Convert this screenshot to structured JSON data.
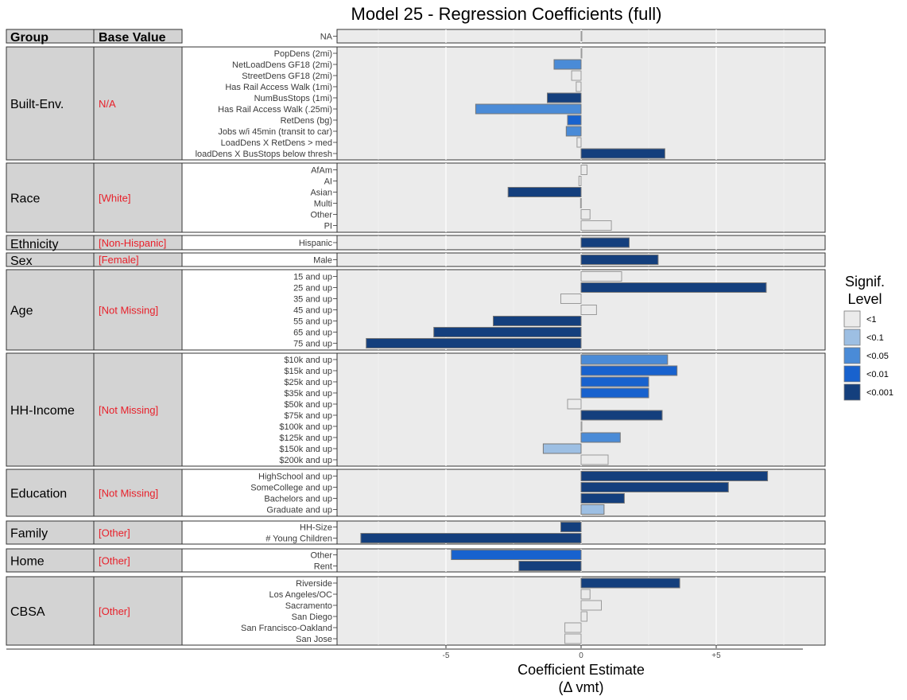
{
  "chart_data": {
    "type": "bar",
    "orientation": "horizontal",
    "title": "Model 25 - Regression Coefficients (full)",
    "xlabel": "Coefficient Estimate",
    "xlabel_line2": "(Δ vmt)",
    "xlim": [
      -9,
      9
    ],
    "xticks": [
      {
        "value": -5,
        "label": "-5"
      },
      {
        "value": 0,
        "label": "0"
      },
      {
        "value": 5,
        "label": "+5"
      }
    ],
    "grid": true,
    "table_headers": {
      "group": "Group",
      "base": "Base Value"
    },
    "legend": {
      "title_line1": "Signif.",
      "title_line2": "Level",
      "position": "right",
      "entries": [
        {
          "label": "<1",
          "color": "#ebebeb"
        },
        {
          "label": "<0.1",
          "color": "#9dbfe3"
        },
        {
          "label": "<0.05",
          "color": "#4a8bd7"
        },
        {
          "label": "<0.01",
          "color": "#1862ce"
        },
        {
          "label": "<0.001",
          "color": "#143f7d"
        }
      ]
    },
    "groups": [
      {
        "group": "",
        "base": "",
        "rows": [
          {
            "label": "NA",
            "value": 0,
            "sig": "<1"
          }
        ]
      },
      {
        "group": "Built-Env.",
        "base": "N/A",
        "rows": [
          {
            "label": "PopDens (2mi)",
            "value": 0.0,
            "sig": "<1"
          },
          {
            "label": "NetLoadDens GF18 (2mi)",
            "value": -1.0,
            "sig": "<0.05"
          },
          {
            "label": "StreetDens GF18 (2mi)",
            "value": -0.35,
            "sig": "<1"
          },
          {
            "label": "Has Rail Access Walk (1mi)",
            "value": -0.18,
            "sig": "<1"
          },
          {
            "label": "NumBusStops (1mi)",
            "value": -1.25,
            "sig": "<0.001"
          },
          {
            "label": "Has Rail Access Walk (.25mi)",
            "value": -3.9,
            "sig": "<0.05"
          },
          {
            "label": "RetDens (bg)",
            "value": -0.5,
            "sig": "<0.01"
          },
          {
            "label": "Jobs w/i 45min (transit to car)",
            "value": -0.55,
            "sig": "<0.05"
          },
          {
            "label": "LoadDens X RetDens > med",
            "value": -0.15,
            "sig": "<1"
          },
          {
            "label": "loadDens X BusStops below thresh",
            "value": 3.1,
            "sig": "<0.001"
          }
        ]
      },
      {
        "group": "Race",
        "base": "[White]",
        "rows": [
          {
            "label": "AfAm",
            "value": 0.22,
            "sig": "<1"
          },
          {
            "label": "AI",
            "value": -0.08,
            "sig": "<1"
          },
          {
            "label": "Asian",
            "value": -2.7,
            "sig": "<0.001"
          },
          {
            "label": "Multi",
            "value": -0.02,
            "sig": "<1"
          },
          {
            "label": "Other",
            "value": 0.33,
            "sig": "<1"
          },
          {
            "label": "PI",
            "value": 1.12,
            "sig": "<1"
          }
        ]
      },
      {
        "group": "Ethnicity",
        "base": "[Non-Hispanic]",
        "rows": [
          {
            "label": "Hispanic",
            "value": 1.78,
            "sig": "<0.001"
          }
        ]
      },
      {
        "group": "Sex",
        "base": "[Female]",
        "rows": [
          {
            "label": "Male",
            "value": 2.85,
            "sig": "<0.001"
          }
        ]
      },
      {
        "group": "Age",
        "base": "[Not Missing]",
        "rows": [
          {
            "label": "15 and up",
            "value": 1.5,
            "sig": "<1"
          },
          {
            "label": "25 and up",
            "value": 6.85,
            "sig": "<0.001"
          },
          {
            "label": "35 and up",
            "value": -0.75,
            "sig": "<1"
          },
          {
            "label": "45 and up",
            "value": 0.57,
            "sig": "<1"
          },
          {
            "label": "55 and up",
            "value": -3.25,
            "sig": "<0.001"
          },
          {
            "label": "65 and up",
            "value": -5.45,
            "sig": "<0.001"
          },
          {
            "label": "75 and up",
            "value": -7.95,
            "sig": "<0.001"
          }
        ]
      },
      {
        "group": "HH-Income",
        "base": "[Not Missing]",
        "rows": [
          {
            "label": "$10k and up",
            "value": 3.2,
            "sig": "<0.05"
          },
          {
            "label": "$15k and up",
            "value": 3.55,
            "sig": "<0.01"
          },
          {
            "label": "$25k and up",
            "value": 2.5,
            "sig": "<0.01"
          },
          {
            "label": "$35k and up",
            "value": 2.5,
            "sig": "<0.01"
          },
          {
            "label": "$50k and up",
            "value": -0.5,
            "sig": "<1"
          },
          {
            "label": "$75k and up",
            "value": 3.0,
            "sig": "<0.001"
          },
          {
            "label": "$100k and up",
            "value": 0.03,
            "sig": "<1"
          },
          {
            "label": "$125k and up",
            "value": 1.45,
            "sig": "<0.05"
          },
          {
            "label": "$150k and up",
            "value": -1.4,
            "sig": "<0.1"
          },
          {
            "label": "$200k and up",
            "value": 1.0,
            "sig": "<1"
          }
        ]
      },
      {
        "group": "Education",
        "base": "[Not Missing]",
        "rows": [
          {
            "label": "HighSchool and up",
            "value": 6.9,
            "sig": "<0.001"
          },
          {
            "label": "SomeCollege and up",
            "value": 5.45,
            "sig": "<0.001"
          },
          {
            "label": "Bachelors and up",
            "value": 1.6,
            "sig": "<0.001"
          },
          {
            "label": "Graduate and up",
            "value": 0.85,
            "sig": "<0.1"
          }
        ]
      },
      {
        "group": "Family",
        "base": "[Other]",
        "rows": [
          {
            "label": "HH-Size",
            "value": -0.75,
            "sig": "<0.001"
          },
          {
            "label": "# Young Children",
            "value": -8.15,
            "sig": "<0.001"
          }
        ]
      },
      {
        "group": "Home",
        "base": "[Other]",
        "rows": [
          {
            "label": "Other",
            "value": -4.8,
            "sig": "<0.01"
          },
          {
            "label": "Rent",
            "value": -2.3,
            "sig": "<0.001"
          }
        ]
      },
      {
        "group": "CBSA",
        "base": "[Other]",
        "rows": [
          {
            "label": "Riverside",
            "value": 3.65,
            "sig": "<0.001"
          },
          {
            "label": "Los Angeles/OC",
            "value": 0.33,
            "sig": "<1"
          },
          {
            "label": "Sacramento",
            "value": 0.75,
            "sig": "<1"
          },
          {
            "label": "San Diego",
            "value": 0.22,
            "sig": "<1"
          },
          {
            "label": "San Francisco-Oakland",
            "value": -0.6,
            "sig": "<1"
          },
          {
            "label": "San Jose",
            "value": -0.6,
            "sig": "<1"
          }
        ]
      }
    ]
  }
}
